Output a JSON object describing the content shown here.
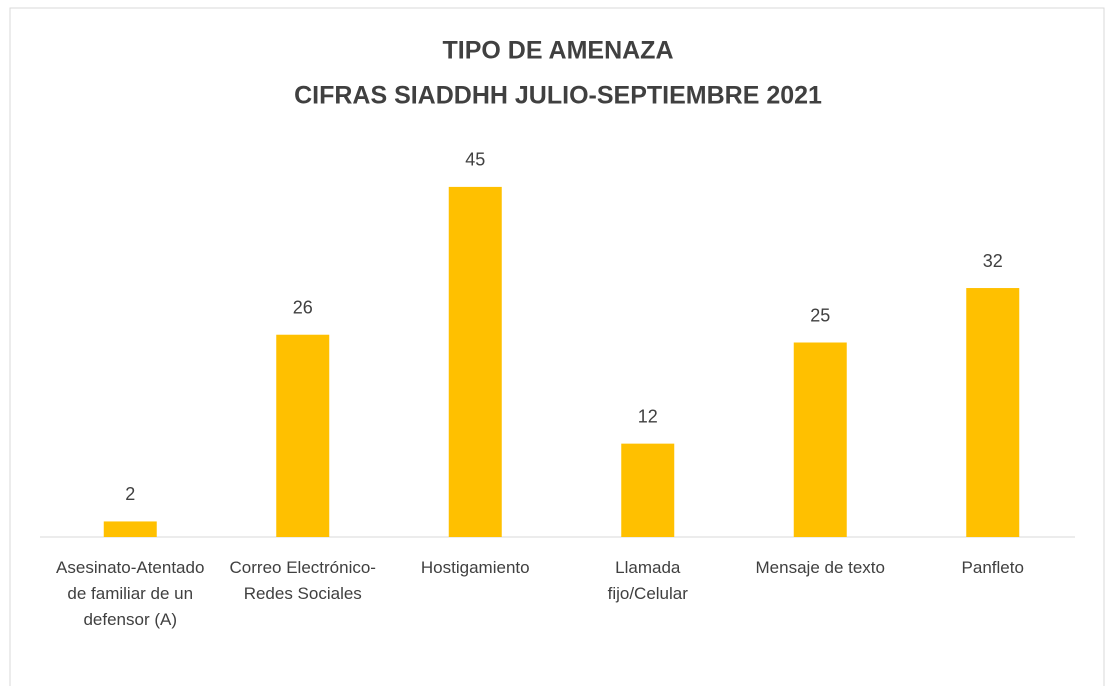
{
  "chart_data": {
    "type": "bar",
    "title": "TIPO DE AMENAZA",
    "subtitle": "CIFRAS SIADDHH JULIO-SEPTIEMBRE 2021",
    "categories": [
      "Asesinato-Atentado de familiar de un defensor (A)",
      "Correo Electrónico-Redes Sociales",
      "Hostigamiento",
      "Llamada fijo/Celular",
      "Mensaje de texto",
      "Panfleto"
    ],
    "values": [
      2,
      26,
      45,
      12,
      25,
      32
    ],
    "color": "#ffc000",
    "ylim": [
      0,
      50
    ]
  }
}
